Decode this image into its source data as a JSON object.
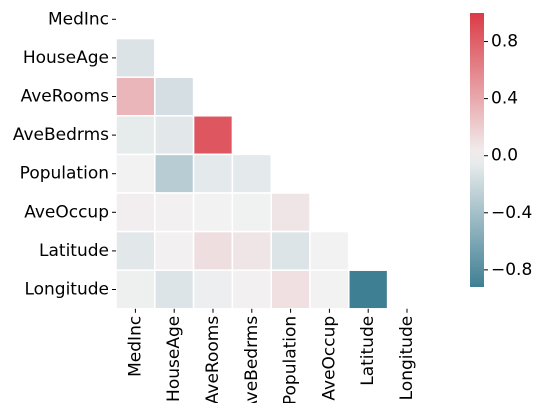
{
  "chart_data": {
    "type": "heatmap",
    "title": "",
    "xlabel": "",
    "ylabel": "",
    "masked": "upper-triangle-including-diagonal",
    "gridlines": "white",
    "labels": [
      "MedInc",
      "HouseAge",
      "AveRooms",
      "AveBedrms",
      "Population",
      "AveOccup",
      "Latitude",
      "Longitude"
    ],
    "matrix": [
      [
        null,
        null,
        null,
        null,
        null,
        null,
        null,
        null
      ],
      [
        -0.12,
        null,
        null,
        null,
        null,
        null,
        null,
        null
      ],
      [
        0.33,
        -0.15,
        null,
        null,
        null,
        null,
        null,
        null
      ],
      [
        -0.06,
        -0.08,
        0.85,
        null,
        null,
        null,
        null,
        null
      ],
      [
        0.0,
        -0.3,
        -0.07,
        -0.07,
        null,
        null,
        null,
        null
      ],
      [
        0.02,
        0.01,
        0.0,
        -0.01,
        0.07,
        null,
        null,
        null
      ],
      [
        -0.08,
        0.01,
        0.11,
        0.07,
        -0.11,
        0.0,
        null,
        null
      ],
      [
        -0.02,
        -0.11,
        -0.03,
        0.01,
        0.1,
        0.0,
        -0.92,
        null
      ]
    ],
    "colorbar": {
      "range": [
        -0.92,
        1.0
      ],
      "ticks": [
        0.8,
        0.4,
        0.0,
        -0.4,
        -0.8
      ],
      "tick_labels": [
        "0.8",
        "0.4",
        "0.0",
        "−0.4",
        "−0.8"
      ],
      "colors": {
        "negative": "#3f7f93",
        "center": "#f2f2f2",
        "positive": "#da3b46"
      }
    }
  }
}
